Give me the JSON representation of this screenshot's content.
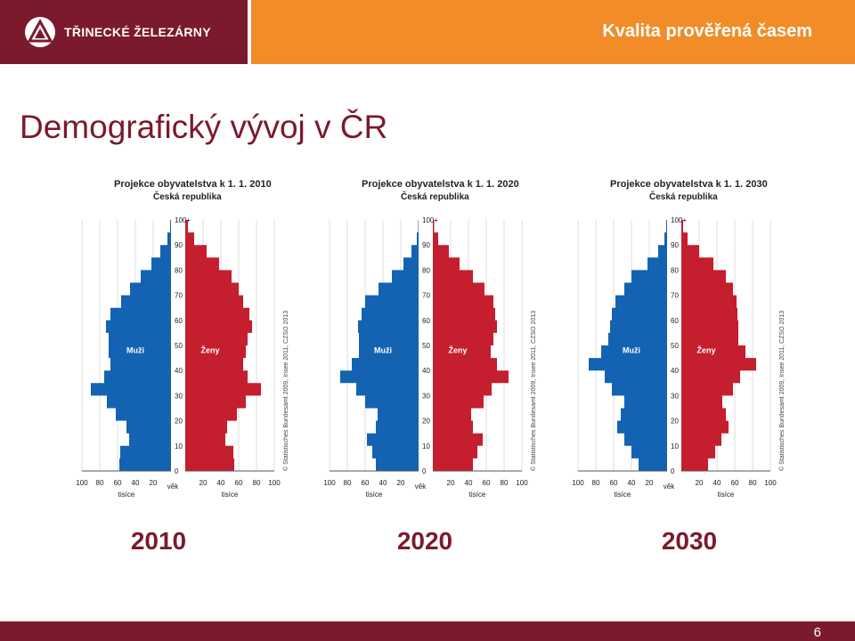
{
  "header": {
    "company_name": "TŘINECKÉ ŽELEZÁRNY",
    "tagline": "Kvalita prověřená časem",
    "logo_icon": "triangle-logo-icon",
    "colors": {
      "primary": "#7b1a2c",
      "accent": "#f28c28",
      "male": "#1462b2",
      "female": "#c41e2f"
    }
  },
  "page_title": "Demografický vývoj v ČR",
  "chart_data": [
    {
      "type": "population-pyramid",
      "title": "Projekce obyvatelstva k 1. 1. 2010",
      "subtitle": "Česká republika",
      "male_label": "Muži",
      "female_label": "Ženy",
      "age_axis_label": "věk",
      "x_unit_label": "tisíce",
      "age_ticks": [
        "0",
        "10",
        "20",
        "30",
        "40",
        "50",
        "60",
        "70",
        "80",
        "90",
        "100+"
      ],
      "x_ticks": [
        "100",
        "80",
        "60",
        "40",
        "20",
        "20",
        "40",
        "60",
        "80",
        "100"
      ],
      "xlim": [
        0,
        100
      ],
      "copyright": "© Statistisches Bundesamt 2009, Insee 2011, CZSO 2013",
      "ages": [
        0,
        5,
        10,
        15,
        20,
        25,
        30,
        35,
        40,
        45,
        50,
        55,
        60,
        65,
        70,
        75,
        80,
        85,
        90,
        95,
        100
      ],
      "male": [
        58,
        57,
        47,
        50,
        62,
        72,
        90,
        75,
        68,
        70,
        70,
        73,
        68,
        56,
        46,
        34,
        22,
        12,
        4,
        1,
        0
      ],
      "female": [
        55,
        54,
        45,
        47,
        58,
        68,
        85,
        70,
        65,
        68,
        70,
        75,
        72,
        65,
        60,
        52,
        38,
        24,
        10,
        3,
        0.5
      ]
    },
    {
      "type": "population-pyramid",
      "title": "Projekce obyvatelstva k 1. 1. 2020",
      "subtitle": "Česká republika",
      "male_label": "Muži",
      "female_label": "Ženy",
      "age_axis_label": "věk",
      "x_unit_label": "tisíce",
      "age_ticks": [
        "0",
        "10",
        "20",
        "30",
        "40",
        "50",
        "60",
        "70",
        "80",
        "90",
        "100+"
      ],
      "x_ticks": [
        "100",
        "80",
        "60",
        "40",
        "20",
        "20",
        "40",
        "60",
        "80",
        "100"
      ],
      "xlim": [
        0,
        100
      ],
      "copyright": "© Statistisches Bundesamt 2009, Insee 2011, CZSO 2013",
      "ages": [
        0,
        5,
        10,
        15,
        20,
        25,
        30,
        35,
        40,
        45,
        50,
        55,
        60,
        65,
        70,
        75,
        80,
        85,
        90,
        95,
        100
      ],
      "male": [
        48,
        52,
        58,
        48,
        46,
        60,
        70,
        88,
        75,
        67,
        67,
        68,
        64,
        60,
        45,
        30,
        17,
        8,
        2,
        0.5,
        0
      ],
      "female": [
        45,
        50,
        56,
        45,
        43,
        57,
        66,
        85,
        72,
        65,
        68,
        72,
        70,
        68,
        58,
        45,
        30,
        18,
        6,
        1.5,
        0.3
      ]
    },
    {
      "type": "population-pyramid",
      "title": "Projekce obyvatelstva k 1. 1. 2030",
      "subtitle": "Česká republika",
      "male_label": "Muži",
      "female_label": "Ženy",
      "age_axis_label": "věk",
      "x_unit_label": "tisíce",
      "age_ticks": [
        "0",
        "10",
        "20",
        "30",
        "40",
        "50",
        "60",
        "70",
        "80",
        "90",
        "100+"
      ],
      "x_ticks": [
        "100",
        "80",
        "60",
        "40",
        "20",
        "20",
        "40",
        "60",
        "80",
        "100"
      ],
      "xlim": [
        0,
        100
      ],
      "copyright": "© Statistisches Bundesamt 2009, Insee 2011, CZSO 2013",
      "ages": [
        0,
        5,
        10,
        15,
        20,
        25,
        30,
        35,
        40,
        45,
        50,
        55,
        60,
        65,
        70,
        75,
        80,
        85,
        90,
        95,
        100
      ],
      "male": [
        32,
        40,
        48,
        56,
        52,
        48,
        62,
        70,
        88,
        74,
        66,
        64,
        62,
        58,
        48,
        40,
        22,
        10,
        3,
        1,
        0
      ],
      "female": [
        30,
        38,
        45,
        53,
        50,
        46,
        58,
        66,
        84,
        72,
        64,
        64,
        63,
        62,
        58,
        50,
        36,
        20,
        7,
        2,
        0.5
      ]
    }
  ],
  "years": [
    "2010",
    "2020",
    "2030"
  ],
  "footer": {
    "page_number": "6"
  }
}
